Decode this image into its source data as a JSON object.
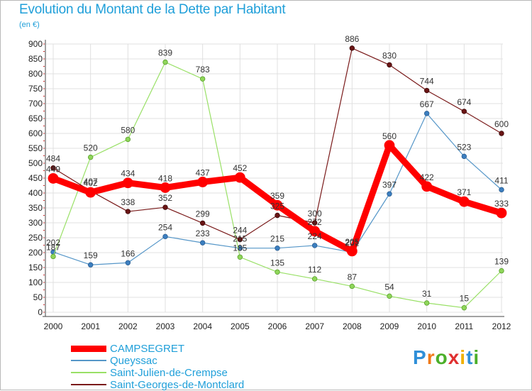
{
  "title": "Evolution du Montant de la Dette par Habitant",
  "unit": "(en €)",
  "logo": "Proxiti",
  "colors": {
    "accent": "#1f9fd9",
    "campsegret": "#ff0000",
    "queyssac": "#5596c8",
    "saint_julien": "#99e066",
    "saint_georges": "#7a1a1a"
  },
  "chart_data": {
    "type": "line",
    "title": "Evolution du Montant de la Dette par Habitant",
    "ylabel": "(en €)",
    "xlabel": "",
    "categories": [
      "2000",
      "2001",
      "2002",
      "2003",
      "2004",
      "2005",
      "2006",
      "2007",
      "2008",
      "2009",
      "2010",
      "2011",
      "2012"
    ],
    "yticks": [
      0,
      50,
      100,
      150,
      200,
      250,
      300,
      350,
      400,
      450,
      500,
      550,
      600,
      650,
      700,
      750,
      800,
      850,
      900
    ],
    "ylim": [
      0,
      900
    ],
    "grid": true,
    "series": [
      {
        "name": "CAMPSEGRET",
        "color": "#ff0000",
        "values": [
          449,
          402,
          434,
          418,
          437,
          452,
          359,
          272,
          205,
          560,
          422,
          371,
          333
        ]
      },
      {
        "name": "Queyssac",
        "color": "#5596c8",
        "values": [
          202,
          159,
          166,
          254,
          233,
          215,
          215,
          224,
          201,
          397,
          667,
          523,
          411
        ]
      },
      {
        "name": "Saint-Julien-de-Crempse",
        "color": "#99e066",
        "values": [
          187,
          520,
          580,
          839,
          783,
          185,
          135,
          112,
          87,
          54,
          31,
          15,
          139
        ]
      },
      {
        "name": "Saint-Georges-de-Montclard",
        "color": "#7a1a1a",
        "values": [
          484,
          407,
          338,
          352,
          299,
          244,
          325,
          300,
          886,
          830,
          744,
          674,
          600
        ]
      }
    ]
  }
}
